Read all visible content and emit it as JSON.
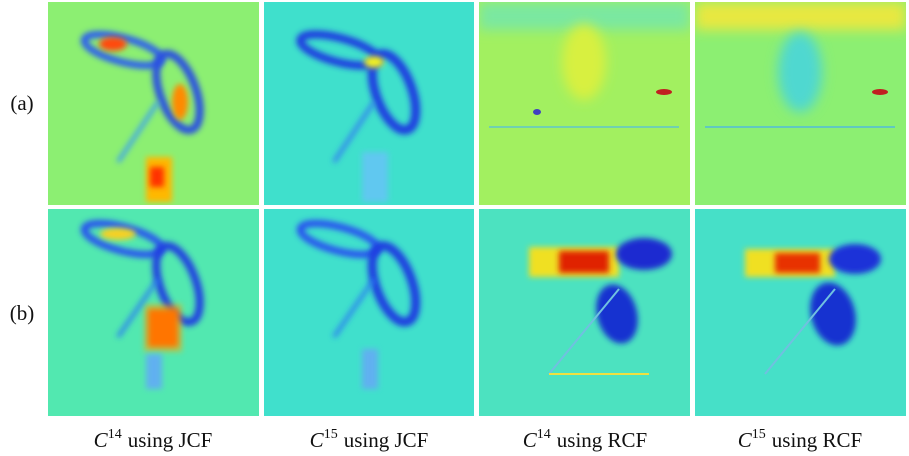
{
  "rows": [
    {
      "label": "(a)"
    },
    {
      "label": "(b)"
    }
  ],
  "columns": [
    {
      "symbol": "C",
      "superscript": "14",
      "text": "using JCF"
    },
    {
      "symbol": "C",
      "superscript": "15",
      "text": "using JCF"
    },
    {
      "symbol": "C",
      "superscript": "14",
      "text": "using RCF"
    },
    {
      "symbol": "C",
      "superscript": "15",
      "text": "using RCF"
    }
  ]
}
